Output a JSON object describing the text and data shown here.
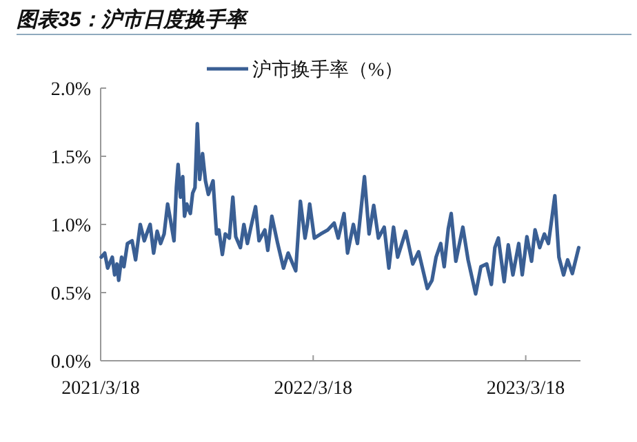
{
  "chart_data": {
    "type": "line",
    "title": "图表35：沪市日度换手率",
    "legend": "top",
    "grid": false,
    "marker": "none",
    "line_style": "solid",
    "xlim": [
      "2021-03-18",
      "2023-06-20"
    ],
    "xticks": [
      {
        "value": "2021-03-18",
        "label": "2021/3/18"
      },
      {
        "value": "2022-03-18",
        "label": "2022/3/18"
      },
      {
        "value": "2023-03-18",
        "label": "2023/3/18"
      }
    ],
    "ylim": [
      0,
      2
    ],
    "yticks": [
      {
        "value": 0,
        "label": "0.0%"
      },
      {
        "value": 0.5,
        "label": "0.5%"
      },
      {
        "value": 1,
        "label": "1.0%"
      },
      {
        "value": 1.5,
        "label": "1.5%"
      },
      {
        "value": 2,
        "label": "2.0%"
      }
    ],
    "series": [
      {
        "name": "沪市换手率（%）",
        "color": "#3a5f94",
        "x": [
          "2021-03-19",
          "2021-03-25",
          "2021-03-30",
          "2021-04-07",
          "2021-04-11",
          "2021-04-15",
          "2021-04-18",
          "2021-04-23",
          "2021-04-27",
          "2021-05-03",
          "2021-05-11",
          "2021-05-17",
          "2021-05-25",
          "2021-06-01",
          "2021-06-05",
          "2021-06-11",
          "2021-06-17",
          "2021-06-23",
          "2021-06-29",
          "2021-07-05",
          "2021-07-11",
          "2021-07-16",
          "2021-07-22",
          "2021-07-26",
          "2021-07-29",
          "2021-08-02",
          "2021-08-06",
          "2021-08-09",
          "2021-08-13",
          "2021-08-19",
          "2021-08-23",
          "2021-08-27",
          "2021-08-31",
          "2021-09-04",
          "2021-09-09",
          "2021-09-14",
          "2021-09-19",
          "2021-09-27",
          "2021-10-03",
          "2021-10-07",
          "2021-10-13",
          "2021-10-18",
          "2021-10-25",
          "2021-10-31",
          "2021-11-05",
          "2021-11-13",
          "2021-11-19",
          "2021-11-25",
          "2021-12-01",
          "2021-12-09",
          "2021-12-15",
          "2021-12-25",
          "2021-12-30",
          "2022-01-06",
          "2022-01-16",
          "2022-01-26",
          "2022-02-03",
          "2022-02-11",
          "2022-02-16",
          "2022-02-24",
          "2022-03-04",
          "2022-03-08",
          "2022-03-12",
          "2022-03-20",
          "2022-03-31",
          "2022-04-12",
          "2022-04-23",
          "2022-04-30",
          "2022-05-10",
          "2022-05-16",
          "2022-05-26",
          "2022-06-02",
          "2022-06-14",
          "2022-06-22",
          "2022-06-30",
          "2022-07-08",
          "2022-07-18",
          "2022-07-26",
          "2022-08-03",
          "2022-08-10",
          "2022-08-24",
          "2022-09-05",
          "2022-09-15",
          "2022-09-30",
          "2022-10-08",
          "2022-10-15",
          "2022-10-23",
          "2022-10-29",
          "2022-11-05",
          "2022-11-10",
          "2022-11-18",
          "2022-11-30",
          "2022-12-09",
          "2022-12-22",
          "2022-12-31",
          "2023-01-10",
          "2023-01-18",
          "2023-01-24",
          "2023-01-30",
          "2023-02-09",
          "2023-02-16",
          "2023-02-24",
          "2023-03-06",
          "2023-03-12",
          "2023-03-20",
          "2023-03-28",
          "2023-04-03",
          "2023-04-11",
          "2023-04-19",
          "2023-04-26",
          "2023-05-02",
          "2023-05-07",
          "2023-05-14",
          "2023-05-22",
          "2023-05-29",
          "2023-06-06",
          "2023-06-17"
        ],
        "values": [
          0.76,
          0.79,
          0.68,
          0.76,
          0.63,
          0.71,
          0.59,
          0.76,
          0.69,
          0.86,
          0.88,
          0.74,
          1.0,
          0.88,
          0.93,
          1.0,
          0.79,
          0.95,
          0.86,
          0.93,
          1.15,
          1.03,
          0.88,
          1.27,
          1.44,
          1.2,
          1.35,
          1.06,
          1.15,
          1.08,
          1.23,
          1.27,
          1.74,
          1.33,
          1.52,
          1.32,
          1.22,
          1.32,
          0.93,
          0.96,
          0.78,
          0.93,
          0.9,
          1.2,
          0.91,
          0.83,
          1.0,
          0.86,
          0.98,
          1.13,
          0.88,
          0.96,
          0.81,
          1.06,
          0.86,
          0.68,
          0.79,
          0.71,
          0.66,
          1.17,
          0.9,
          1.0,
          1.15,
          0.9,
          0.93,
          0.96,
          1.01,
          0.9,
          1.08,
          0.79,
          1.0,
          0.86,
          1.35,
          0.93,
          1.14,
          0.9,
          0.98,
          0.68,
          0.98,
          0.76,
          0.95,
          0.71,
          0.8,
          0.53,
          0.59,
          0.76,
          0.86,
          0.69,
          0.97,
          1.08,
          0.73,
          0.98,
          0.74,
          0.49,
          0.69,
          0.71,
          0.56,
          0.83,
          0.9,
          0.58,
          0.85,
          0.63,
          0.86,
          0.63,
          0.91,
          0.73,
          0.96,
          0.83,
          0.93,
          0.86,
          1.05,
          1.21,
          0.76,
          0.63,
          0.74,
          0.64,
          0.83
        ]
      }
    ]
  }
}
